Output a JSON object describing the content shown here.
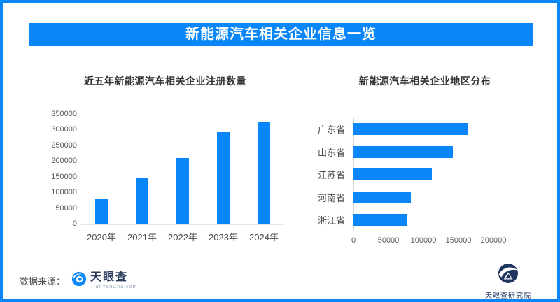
{
  "banner": {
    "title": "新能源汽车相关企业信息一览"
  },
  "chart_data": [
    {
      "type": "bar",
      "title": "近五年新能源汽车相关企业注册数量",
      "categories": [
        "2020年",
        "2021年",
        "2022年",
        "2023年",
        "2024年"
      ],
      "values": [
        78000,
        148000,
        210000,
        292000,
        325000
      ],
      "ylim": [
        0,
        350000
      ],
      "y_ticks": [
        0,
        50000,
        100000,
        150000,
        200000,
        250000,
        300000,
        350000
      ],
      "grid": false,
      "legend": "none",
      "bar_color": "#0886fa"
    },
    {
      "type": "bar-horizontal",
      "title": "新能源汽车相关企业地区分布",
      "categories": [
        "广东省",
        "山东省",
        "江苏省",
        "河南省",
        "浙江省"
      ],
      "values": [
        164000,
        142000,
        112000,
        82000,
        76000
      ],
      "xlim": [
        0,
        200000
      ],
      "x_ticks": [
        0,
        50000,
        100000,
        150000,
        200000
      ],
      "grid": false,
      "legend": "none",
      "bar_color": "#0886fa"
    }
  ],
  "footer": {
    "source_label": "数据来源：",
    "tianyancha_logo": {
      "name": "天眼查",
      "domain": "TianYanCha.com"
    },
    "research_institute": "天眼查研究院"
  },
  "colors": {
    "primary": "#0886fa",
    "navy": "#1e3560",
    "axis_text": "#595959",
    "baseline": "#e5e5e5"
  }
}
